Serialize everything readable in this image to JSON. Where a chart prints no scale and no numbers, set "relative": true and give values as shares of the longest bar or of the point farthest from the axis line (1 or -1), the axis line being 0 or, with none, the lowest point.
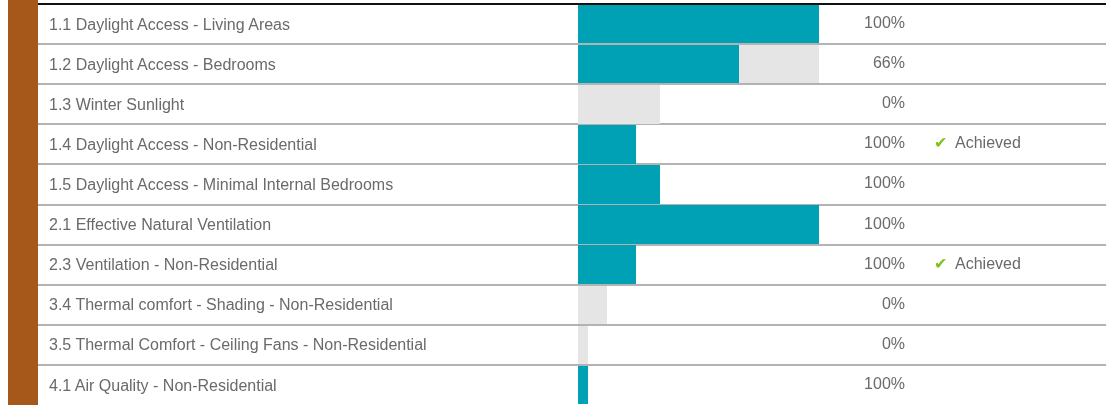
{
  "chart_data": [
    {
      "type": "bar",
      "orientation": "horizontal",
      "stacked": true,
      "relative": true,
      "grid": "y",
      "categories": [
        "1.1 Daylight Access - Living Areas",
        "1.2 Daylight Access - Bedrooms",
        "1.3 Winter Sunlight",
        "1.4 Daylight Access - Non-Residential",
        "1.5 Daylight Access - Minimal Internal Bedrooms",
        "2.1 Effective Natural Ventilation",
        "2.3 Ventilation - Non-Residential",
        "3.4 Thermal comfort - Shading - Non-Residential",
        "3.5 Thermal Comfort - Ceiling Fans - Non-Residential",
        "4.1 Air Quality - Non-Residential"
      ],
      "series": [
        {
          "color": "#00a0b5",
          "values": [
            1,
            0.67,
            0,
            0.24,
            0.34,
            1,
            0.24,
            0,
            0,
            0.04
          ]
        },
        {
          "color": "#e5e5e5",
          "values": [
            0,
            0.33,
            0.34,
            0,
            0,
            0,
            0,
            0.12,
            0.04,
            0
          ]
        }
      ]
    },
    {
      "type": "other",
      "categories": [
        null,
        null,
        null,
        null,
        null,
        null,
        null,
        null,
        null,
        null
      ],
      "value_labels": [
        "100%",
        "66%",
        "0%",
        "100%",
        "100%",
        "100%",
        "100%",
        "0%",
        "0%",
        "100%"
      ]
    },
    {
      "type": "other",
      "categories": [
        null,
        null,
        null,
        null,
        null,
        null,
        null,
        null,
        null,
        null
      ],
      "value_labels": [
        null,
        null,
        null,
        "✔ Achieved",
        null,
        null,
        "✔ Achieved",
        null,
        null,
        null
      ]
    }
  ]
}
